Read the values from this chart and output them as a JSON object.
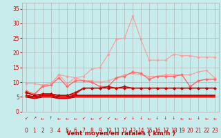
{
  "background_color": "#c8ecec",
  "grid_color": "#aaaaaa",
  "xlabel": "Vent moyen/en rafales ( km/h )",
  "xlabel_color": "#cc0000",
  "xlabel_fontsize": 6.5,
  "tick_color": "#cc0000",
  "tick_fontsize": 5.5,
  "ylim": [
    0,
    37
  ],
  "yticks": [
    0,
    5,
    10,
    15,
    20,
    25,
    30,
    35
  ],
  "xlim": [
    -0.5,
    23.5
  ],
  "xticks": [
    0,
    1,
    2,
    3,
    4,
    5,
    6,
    7,
    8,
    9,
    10,
    11,
    12,
    13,
    14,
    15,
    16,
    17,
    18,
    19,
    20,
    21,
    22,
    23
  ],
  "lines": [
    {
      "color": "#ff9999",
      "linewidth": 0.8,
      "marker": "D",
      "markersize": 1.8,
      "y": [
        9.5,
        9.5,
        9.0,
        9.5,
        12.5,
        12.0,
        11.5,
        12.0,
        14.5,
        15.0,
        19.5,
        24.5,
        25.0,
        32.5,
        24.5,
        17.5,
        17.5,
        17.5,
        19.5,
        19.0,
        19.0,
        18.5,
        18.5,
        18.5
      ]
    },
    {
      "color": "#ff9999",
      "linewidth": 0.8,
      "marker": "D",
      "markersize": 1.8,
      "y": [
        7.0,
        5.5,
        9.0,
        9.5,
        12.5,
        9.5,
        11.5,
        10.5,
        10.5,
        10.0,
        10.5,
        11.5,
        12.5,
        13.0,
        12.5,
        12.0,
        12.0,
        12.5,
        12.5,
        12.5,
        12.5,
        13.5,
        14.0,
        11.5
      ]
    },
    {
      "color": "#ff6666",
      "linewidth": 1.0,
      "marker": "D",
      "markersize": 2.0,
      "y": [
        7.0,
        6.0,
        8.5,
        9.0,
        11.5,
        8.5,
        10.5,
        10.5,
        10.0,
        8.5,
        8.5,
        11.5,
        12.0,
        13.5,
        13.0,
        11.0,
        12.0,
        12.0,
        12.0,
        12.5,
        8.5,
        10.5,
        11.0,
        11.0
      ]
    },
    {
      "color": "#cc0000",
      "linewidth": 1.0,
      "marker": "D",
      "markersize": 2.0,
      "y": [
        6.5,
        5.5,
        6.0,
        6.0,
        5.5,
        5.5,
        6.5,
        8.0,
        8.0,
        8.0,
        8.5,
        8.0,
        8.5,
        8.0,
        8.0,
        8.0,
        8.0,
        8.0,
        8.0,
        8.0,
        8.0,
        8.0,
        8.0,
        8.0
      ]
    },
    {
      "color": "#cc0000",
      "linewidth": 1.0,
      "marker": "D",
      "markersize": 2.0,
      "y": [
        6.5,
        5.5,
        6.0,
        6.0,
        5.5,
        5.5,
        6.0,
        8.0,
        8.0,
        8.0,
        8.0,
        8.0,
        8.0,
        8.0,
        8.0,
        8.0,
        8.0,
        8.0,
        8.0,
        8.0,
        8.0,
        8.0,
        8.0,
        8.0
      ]
    },
    {
      "color": "#cc0000",
      "linewidth": 1.5,
      "marker": null,
      "markersize": 0,
      "y": [
        5.5,
        5.0,
        5.5,
        5.5,
        5.0,
        5.0,
        5.5,
        5.5,
        5.5,
        5.5,
        5.5,
        5.5,
        5.5,
        5.5,
        5.5,
        5.5,
        5.5,
        5.5,
        5.5,
        5.5,
        5.5,
        5.5,
        5.5,
        5.5
      ]
    },
    {
      "color": "#cc0000",
      "linewidth": 1.5,
      "marker": null,
      "markersize": 0,
      "y": [
        5.0,
        4.5,
        5.0,
        5.0,
        4.5,
        4.5,
        5.0,
        5.0,
        5.0,
        5.0,
        5.0,
        5.0,
        5.0,
        5.0,
        5.0,
        5.0,
        5.0,
        5.0,
        5.0,
        5.0,
        5.0,
        5.0,
        5.0,
        5.0
      ]
    }
  ],
  "arrow_symbols": [
    "↙",
    "↗",
    "←",
    "↑",
    "←",
    "←",
    "←",
    "↙",
    "←",
    "↙",
    "↙",
    "←",
    "↙",
    "↓",
    "↓",
    "←",
    "↓",
    "↓",
    "↓",
    "←",
    "←",
    "↓",
    "←",
    "←"
  ],
  "arrow_color": "#cc0000"
}
